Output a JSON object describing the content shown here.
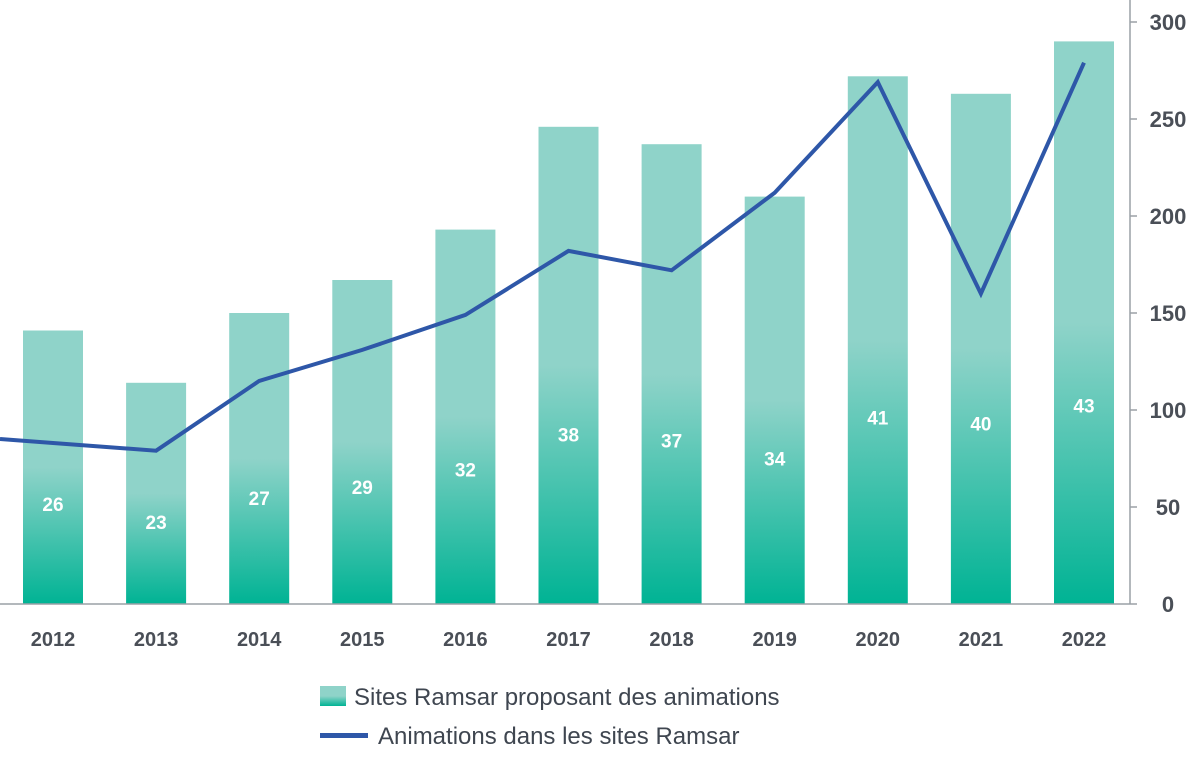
{
  "chart_data": {
    "type": "bar",
    "categories": [
      "2012",
      "2013",
      "2014",
      "2015",
      "2016",
      "2017",
      "2018",
      "2019",
      "2020",
      "2021",
      "2022"
    ],
    "series": [
      {
        "name": "Sites Ramsar proposant des animations",
        "type": "bar",
        "values": [
          141,
          114,
          150,
          167,
          193,
          246,
          237,
          210,
          272,
          263,
          290
        ],
        "data_labels": [
          "26",
          "23",
          "27",
          "29",
          "32",
          "38",
          "37",
          "34",
          "41",
          "40",
          "43"
        ],
        "color_top": "#8fd3c9",
        "color_bottom": "#00b394"
      },
      {
        "name": "Animations dans les sites Ramsar",
        "type": "line",
        "values": [
          83,
          79,
          115,
          131,
          149,
          182,
          172,
          212,
          269,
          160,
          279
        ],
        "color": "#2e57a8"
      }
    ],
    "yaxis": {
      "position": "right",
      "ylim": [
        0,
        300
      ],
      "ticks": [
        "0",
        "50",
        "100",
        "150",
        "200",
        "250",
        "300"
      ]
    },
    "grid": false,
    "legend": "bottom-center"
  }
}
